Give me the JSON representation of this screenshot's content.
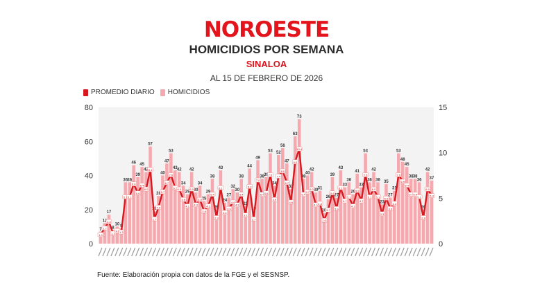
{
  "header": {
    "logo": "NOROESTE",
    "title": "HOMICIDIOS POR SEMANA",
    "region": "SINALOA",
    "date": "AL 15 DE FEBRERO DE 2026"
  },
  "footer": "Fuente: Elaboración propia con datos de la FGE y el SESNSP.",
  "colors": {
    "brand": "#e3141c",
    "line": "#d7181f",
    "bars": "#f5a9ae",
    "plot_bg": "#f3f3f3"
  },
  "chart_data": {
    "type": "bar+line",
    "legend": {
      "position": "top-left",
      "items": [
        "PROMEDIO DIARIO",
        "HOMICIDIOS"
      ]
    },
    "ylim_left": [
      0,
      80
    ],
    "yticks_left": [
      "0",
      "20",
      "40",
      "60",
      "80"
    ],
    "ylim_right": [
      0,
      15
    ],
    "yticks_right": [
      "0",
      "5",
      "10",
      "15"
    ],
    "grid": false,
    "series": [
      {
        "name": "HOMICIDIOS",
        "type": "bar",
        "axis": "left",
        "values": [
          7,
          12,
          17,
          8,
          10,
          9,
          36,
          36,
          46,
          39,
          45,
          42,
          57,
          19,
          28,
          40,
          47,
          53,
          43,
          42,
          34,
          29,
          42,
          30,
          34,
          25,
          29,
          38,
          20,
          43,
          24,
          27,
          32,
          30,
          38,
          22,
          44,
          19,
          49,
          38,
          39,
          53,
          34,
          52,
          56,
          47,
          32,
          63,
          73,
          38,
          40,
          42,
          30,
          31,
          18,
          26,
          39,
          27,
          43,
          33,
          36,
          29,
          41,
          33,
          53,
          36,
          42,
          36,
          23,
          35,
          27,
          31,
          53,
          48,
          45,
          38,
          38,
          36,
          20,
          42,
          37
        ]
      },
      {
        "name": "PROMEDIO DIARIO",
        "type": "line",
        "axis": "right",
        "derived": "HOMICIDIOS / 7"
      }
    ]
  }
}
